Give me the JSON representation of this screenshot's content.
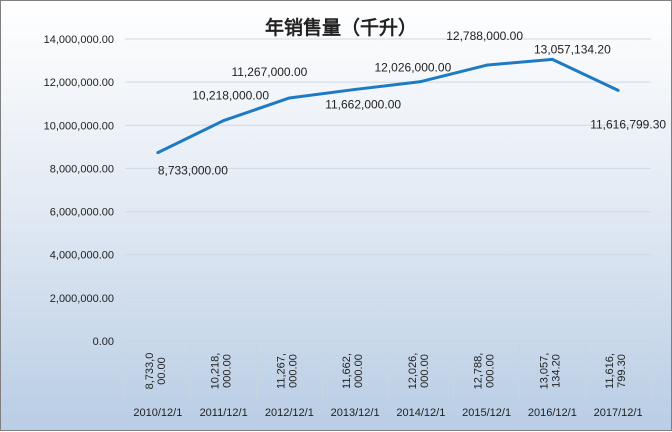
{
  "chart_data": {
    "type": "line",
    "title": "年销售量（千升）",
    "xlabel": "",
    "ylabel": "",
    "categories": [
      "2010/12/1",
      "2011/12/1",
      "2012/12/1",
      "2013/12/1",
      "2014/12/1",
      "2015/12/1",
      "2016/12/1",
      "2017/12/1"
    ],
    "values": [
      8733000.0,
      10218000.0,
      11267000.0,
      11662000.0,
      12026000.0,
      12788000.0,
      13057134.2,
      11616799.3
    ],
    "data_labels": [
      "8,733,000.00",
      "10,218,000.00",
      "11,267,000.00",
      "11,662,000.00",
      "12,026,000.00",
      "12,788,000.00",
      "13,057,134.20",
      "11,616,799.30"
    ],
    "table_labels": [
      [
        "8,733,0",
        "00.00"
      ],
      [
        "10,218,",
        "000.00"
      ],
      [
        "11,267,",
        "000.00"
      ],
      [
        "11,662,",
        "000.00"
      ],
      [
        "12,026,",
        "000.00"
      ],
      [
        "12,788,",
        "000.00"
      ],
      [
        "13,057,",
        "134.20"
      ],
      [
        "11,616,",
        "799.30"
      ]
    ],
    "ylim": [
      0,
      14000000
    ],
    "yticks": [
      "0.00",
      "2,000,000.00",
      "4,000,000.00",
      "6,000,000.00",
      "8,000,000.00",
      "10,000,000.00",
      "12,000,000.00",
      "14,000,000.00"
    ],
    "grid": true,
    "legend": "none",
    "line_color": "#1f7bc1"
  }
}
